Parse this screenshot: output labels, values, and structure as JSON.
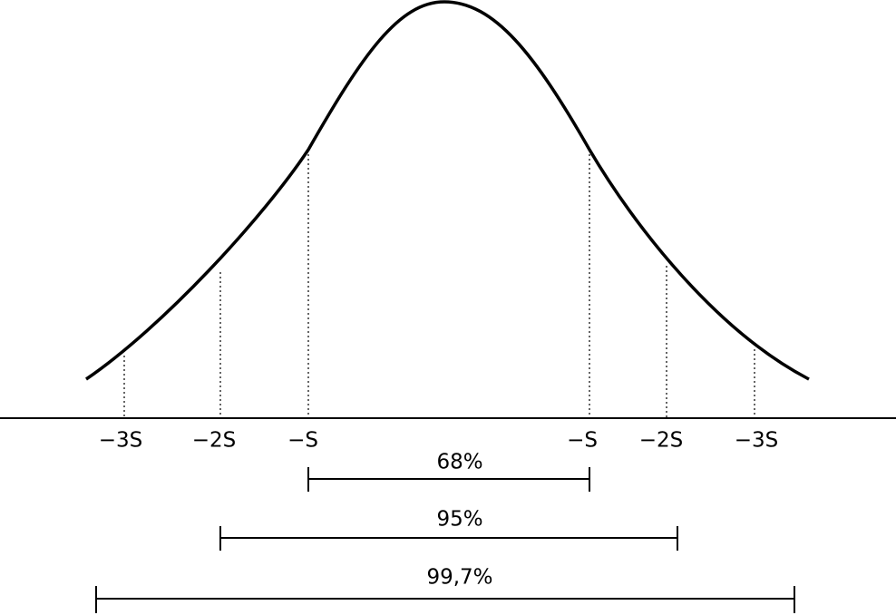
{
  "markers": [
    {
      "label": "−3S"
    },
    {
      "label": "−2S"
    },
    {
      "label": "−S"
    },
    {
      "label": "−S"
    },
    {
      "label": "−2S"
    },
    {
      "label": "−3S"
    }
  ],
  "ranges": [
    {
      "label": "68%"
    },
    {
      "label": "95%"
    },
    {
      "label": "99,7%"
    }
  ]
}
